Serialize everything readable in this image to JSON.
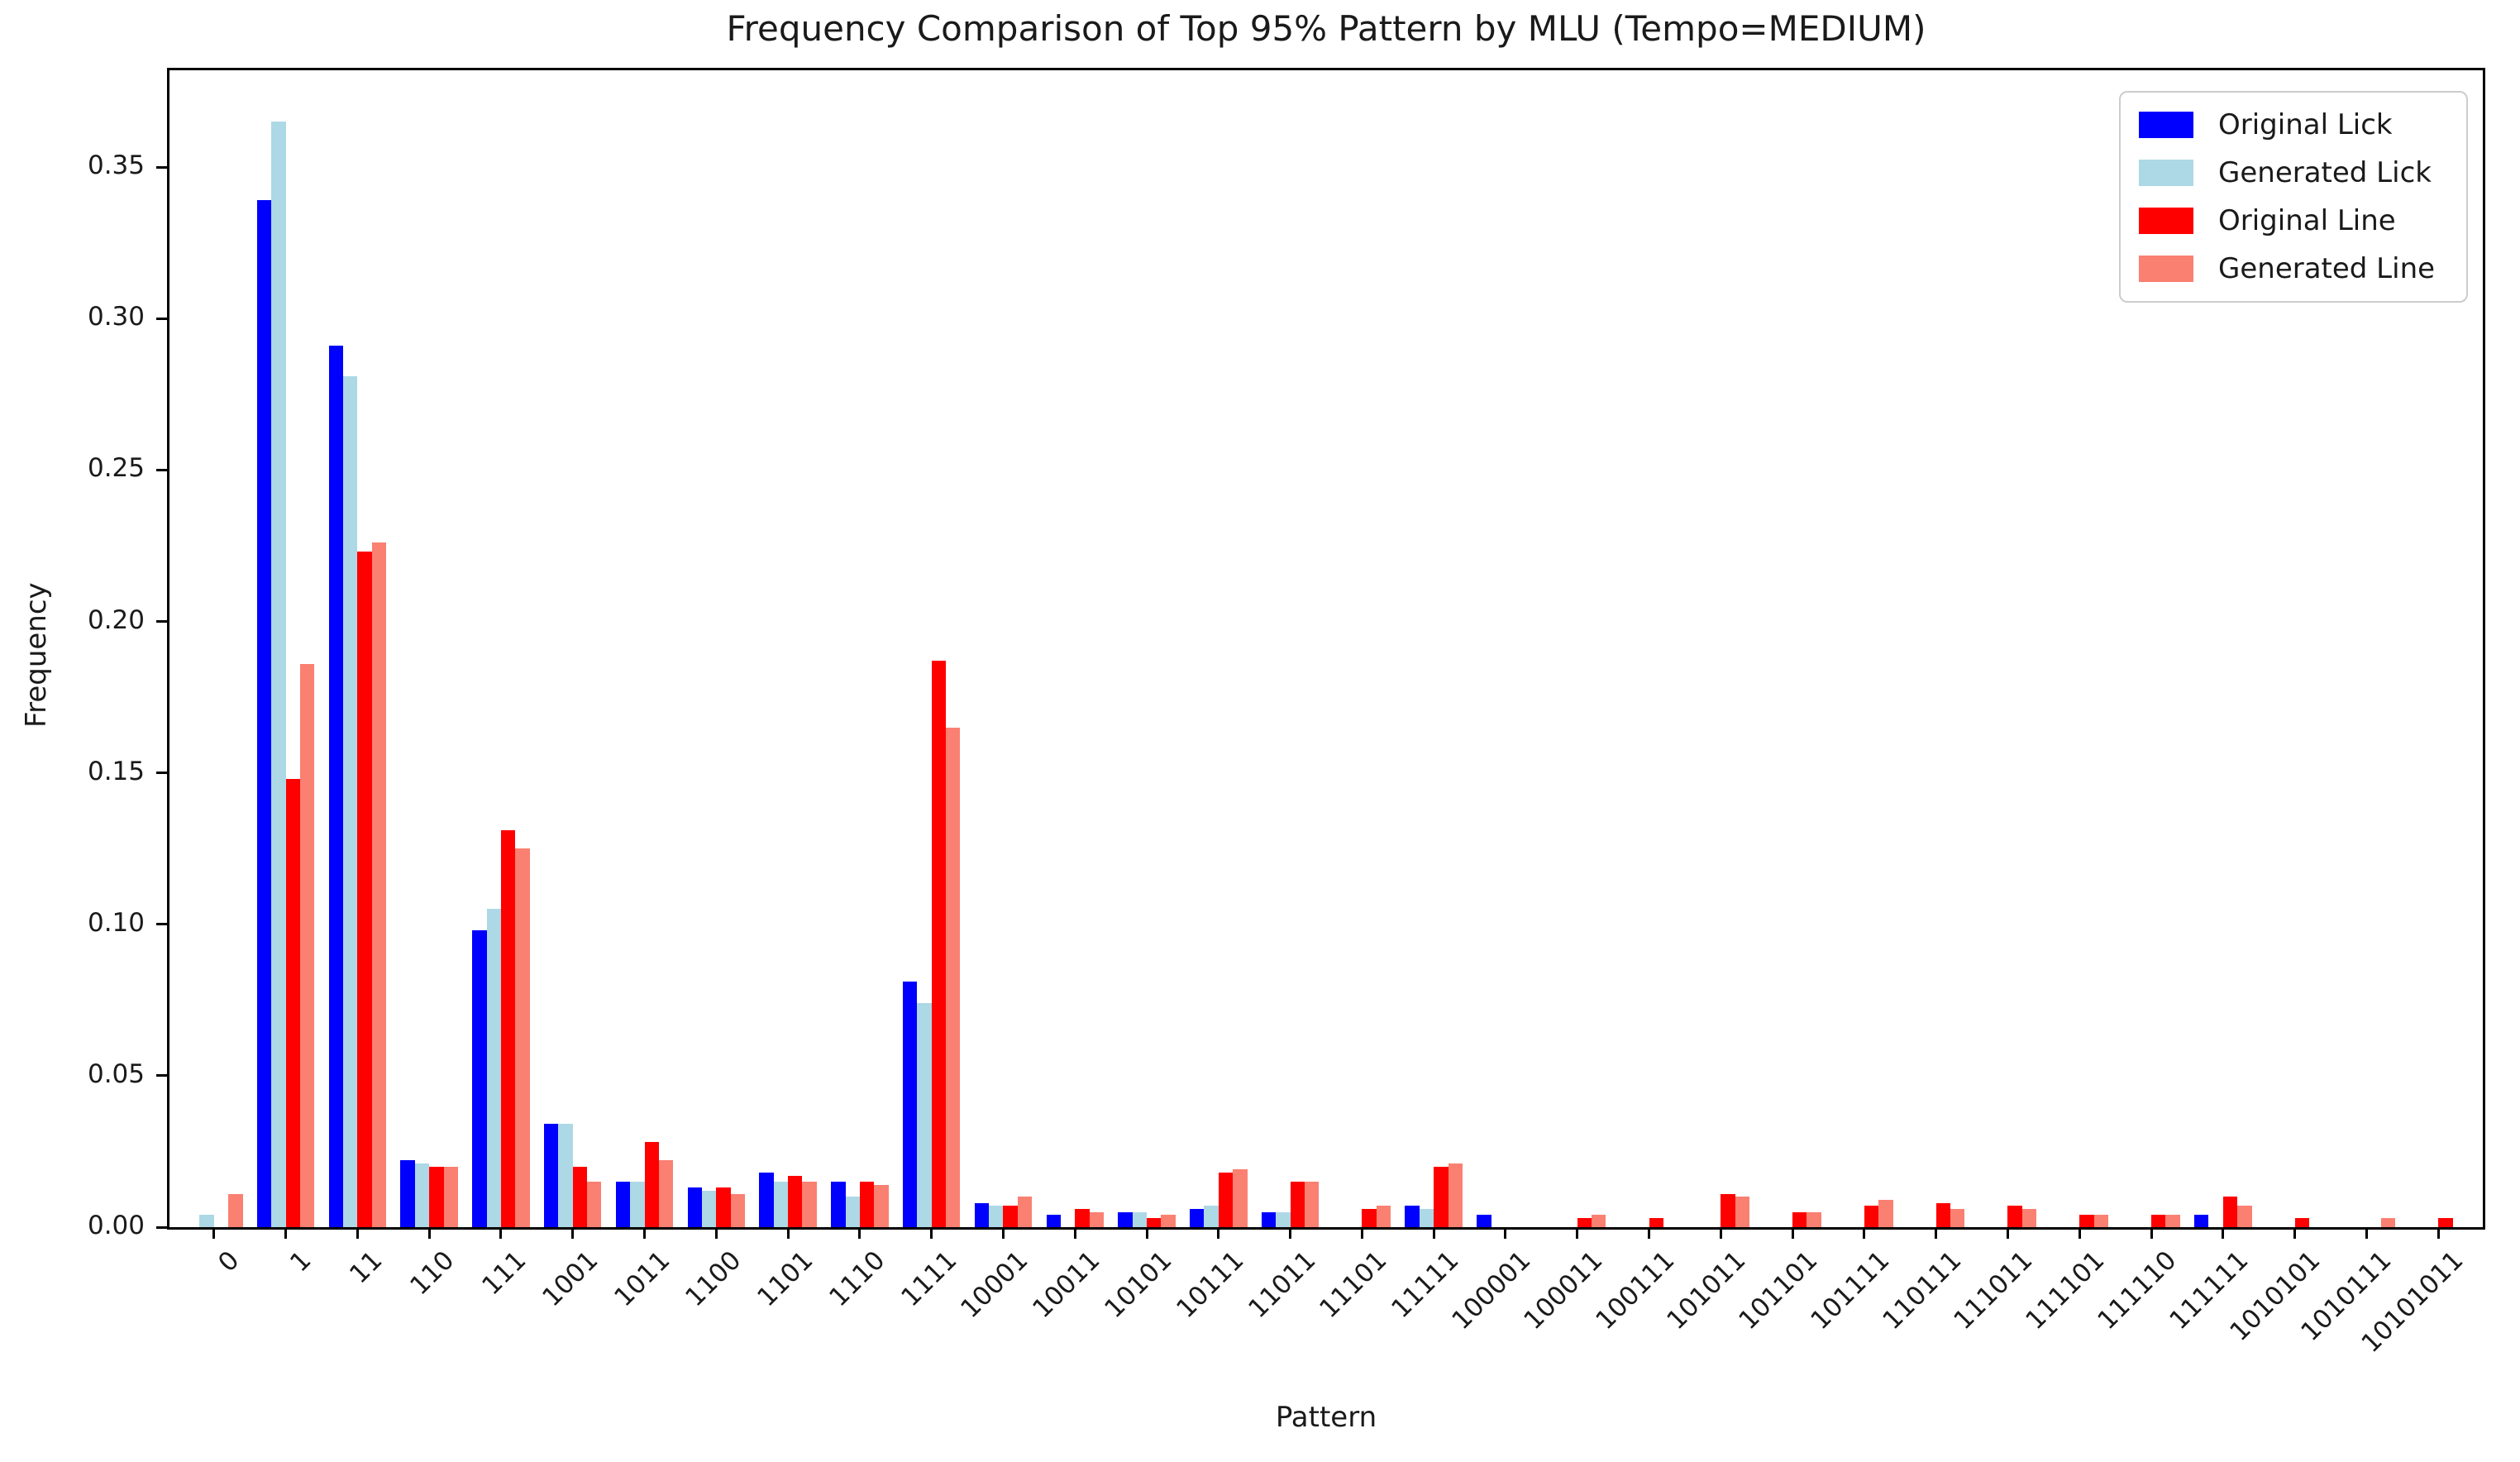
{
  "chart_data": {
    "type": "bar",
    "title": "Frequency Comparison of Top 95% Pattern by MLU (Tempo=MEDIUM)",
    "xlabel": "Pattern",
    "ylabel": "Frequency",
    "grid": false,
    "legend_position": "upper right",
    "tick_rotation": 45,
    "ylim": [
      0,
      0.382
    ],
    "yticks": [
      0.0,
      0.05,
      0.1,
      0.15,
      0.2,
      0.25,
      0.3,
      0.35
    ],
    "categories": [
      "0",
      "1",
      "11",
      "110",
      "111",
      "1001",
      "1011",
      "1100",
      "1101",
      "1110",
      "1111",
      "10001",
      "10011",
      "10101",
      "10111",
      "11011",
      "11101",
      "11111",
      "100001",
      "100011",
      "100111",
      "101011",
      "101101",
      "101111",
      "110111",
      "111011",
      "111101",
      "111110",
      "111111",
      "1010101",
      "1010111",
      "10101011"
    ],
    "series": [
      {
        "name": "Original Lick",
        "color": "#0000ff",
        "values": [
          0,
          0.339,
          0.291,
          0.022,
          0.098,
          0.034,
          0.015,
          0.013,
          0.018,
          0.015,
          0.081,
          0.008,
          0.004,
          0.005,
          0.006,
          0.005,
          0,
          0.007,
          0.004,
          0,
          0,
          0,
          0,
          0,
          0,
          0,
          0,
          0,
          0.004,
          0,
          0,
          0
        ]
      },
      {
        "name": "Generated Lick",
        "color": "#add8e6",
        "values": [
          0.004,
          0.365,
          0.281,
          0.021,
          0.105,
          0.034,
          0.015,
          0.012,
          0.015,
          0.01,
          0.074,
          0.007,
          0,
          0.005,
          0.007,
          0.005,
          0,
          0.006,
          0,
          0,
          0,
          0,
          0,
          0,
          0,
          0,
          0,
          0,
          0,
          0,
          0,
          0
        ]
      },
      {
        "name": "Original Line",
        "color": "#ff0000",
        "values": [
          0,
          0.148,
          0.223,
          0.02,
          0.131,
          0.02,
          0.028,
          0.013,
          0.017,
          0.015,
          0.187,
          0.007,
          0.006,
          0.003,
          0.018,
          0.015,
          0.006,
          0.02,
          0,
          0.003,
          0.003,
          0.011,
          0.005,
          0.007,
          0.008,
          0.007,
          0.004,
          0.004,
          0.01,
          0.003,
          0,
          0.003
        ]
      },
      {
        "name": "Generated Line",
        "color": "#fa8072",
        "values": [
          0.011,
          0.186,
          0.226,
          0.02,
          0.125,
          0.015,
          0.022,
          0.011,
          0.015,
          0.014,
          0.165,
          0.01,
          0.005,
          0.004,
          0.019,
          0.015,
          0.007,
          0.021,
          0,
          0.004,
          0,
          0.01,
          0.005,
          0.009,
          0.006,
          0.006,
          0.004,
          0.004,
          0.007,
          0,
          0.003,
          0
        ]
      }
    ],
    "axis_color": "#000000",
    "background_color": "#ffffff"
  }
}
